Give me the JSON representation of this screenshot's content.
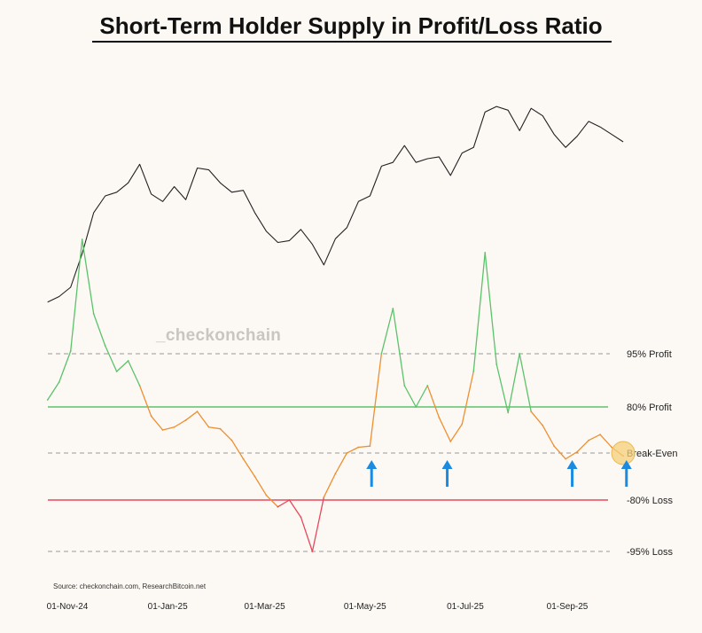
{
  "title": "Short-Term Holder Supply in Profit/Loss Ratio",
  "watermark": "_checkonchain",
  "source": "Source: checkonchain.com, ResearchBitcoin.net",
  "chart_data": {
    "type": "line",
    "x_ticks": [
      "01-Nov-24",
      "01-Jan-25",
      "01-Mar-25",
      "01-May-25",
      "01-Jul-25",
      "01-Sep-25"
    ],
    "reference_lines": [
      {
        "label": "95% Profit",
        "value": 95,
        "style": "dashed",
        "color": "#999999"
      },
      {
        "label": "80% Profit",
        "value": 80,
        "style": "solid",
        "color": "#5cc26b"
      },
      {
        "label": "Break-Even",
        "value": 0,
        "style": "dashed",
        "color": "#999999"
      },
      {
        "label": "-80% Loss",
        "value": -80,
        "style": "solid",
        "color": "#e8485c"
      },
      {
        "label": "-95% Loss",
        "value": -95,
        "style": "dashed",
        "color": "#999999"
      }
    ],
    "colors": {
      "profit": "#5cc26b",
      "neutral": "#ee8f32",
      "loss": "#e8485c",
      "price": "#222222",
      "arrow": "#1a8be0",
      "highlight": "#f5cf7a"
    },
    "series": [
      {
        "role": "price",
        "x": [
          "2024-10-20",
          "2024-10-27",
          "2024-11-03",
          "2024-11-10",
          "2024-11-17",
          "2024-11-24",
          "2024-12-01",
          "2024-12-08",
          "2024-12-15",
          "2024-12-22",
          "2024-12-29",
          "2025-01-05",
          "2025-01-12",
          "2025-01-19",
          "2025-01-26",
          "2025-02-02",
          "2025-02-09",
          "2025-02-16",
          "2025-02-23",
          "2025-03-02",
          "2025-03-09",
          "2025-03-16",
          "2025-03-23",
          "2025-03-30",
          "2025-04-06",
          "2025-04-13",
          "2025-04-20",
          "2025-04-27",
          "2025-05-04",
          "2025-05-11",
          "2025-05-18",
          "2025-05-25",
          "2025-06-01",
          "2025-06-08",
          "2025-06-15",
          "2025-06-22",
          "2025-06-29",
          "2025-07-06",
          "2025-07-13",
          "2025-07-20",
          "2025-07-27",
          "2025-08-03",
          "2025-08-10",
          "2025-08-17",
          "2025-08-24",
          "2025-08-31",
          "2025-09-07",
          "2025-09-14",
          "2025-09-21",
          "2025-09-28",
          "2025-10-05"
        ],
        "y": [
          67000,
          68500,
          71000,
          80000,
          91000,
          95500,
          96500,
          99000,
          104000,
          96000,
          94000,
          98000,
          94500,
          103000,
          102500,
          99000,
          96500,
          97000,
          91000,
          86000,
          83000,
          83500,
          86500,
          82500,
          77000,
          84000,
          87000,
          94000,
          95500,
          103500,
          104500,
          109000,
          104500,
          105500,
          106000,
          101000,
          107000,
          108500,
          118000,
          119500,
          118500,
          113000,
          119000,
          117000,
          112000,
          108500,
          111500,
          115500,
          114000,
          112000,
          110000
        ]
      },
      {
        "role": "profit_loss_ratio",
        "x": [
          "2024-10-20",
          "2024-10-27",
          "2024-11-03",
          "2024-11-10",
          "2024-11-17",
          "2024-11-24",
          "2024-12-01",
          "2024-12-08",
          "2024-12-15",
          "2024-12-22",
          "2024-12-29",
          "2025-01-05",
          "2025-01-12",
          "2025-01-19",
          "2025-01-26",
          "2025-02-02",
          "2025-02-09",
          "2025-02-16",
          "2025-02-23",
          "2025-03-02",
          "2025-03-09",
          "2025-03-16",
          "2025-03-23",
          "2025-03-30",
          "2025-04-06",
          "2025-04-13",
          "2025-04-20",
          "2025-04-27",
          "2025-05-04",
          "2025-05-11",
          "2025-05-18",
          "2025-05-25",
          "2025-06-01",
          "2025-06-08",
          "2025-06-15",
          "2025-06-22",
          "2025-06-29",
          "2025-07-06",
          "2025-07-13",
          "2025-07-20",
          "2025-07-27",
          "2025-08-03",
          "2025-08-10",
          "2025-08-17",
          "2025-08-24",
          "2025-08-31",
          "2025-09-07",
          "2025-09-14",
          "2025-09-21",
          "2025-09-28",
          "2025-10-05"
        ],
        "y": [
          82,
          87,
          96,
          138,
          110,
          98,
          90,
          93,
          86,
          64,
          40,
          45,
          57,
          72,
          45,
          42,
          22,
          -10,
          -40,
          -72,
          -82,
          -80,
          -85,
          -95,
          -75,
          -35,
          0,
          10,
          12,
          95,
          112,
          86,
          80,
          86,
          62,
          20,
          50,
          90,
          133,
          92,
          70,
          95,
          72,
          48,
          12,
          -10,
          2,
          22,
          32,
          10,
          -5
        ]
      }
    ],
    "highlight": {
      "x": "2025-10-05",
      "y": 0
    },
    "arrows_at": [
      "2025-05-05",
      "2025-06-20",
      "2025-09-04",
      "2025-10-07"
    ]
  }
}
